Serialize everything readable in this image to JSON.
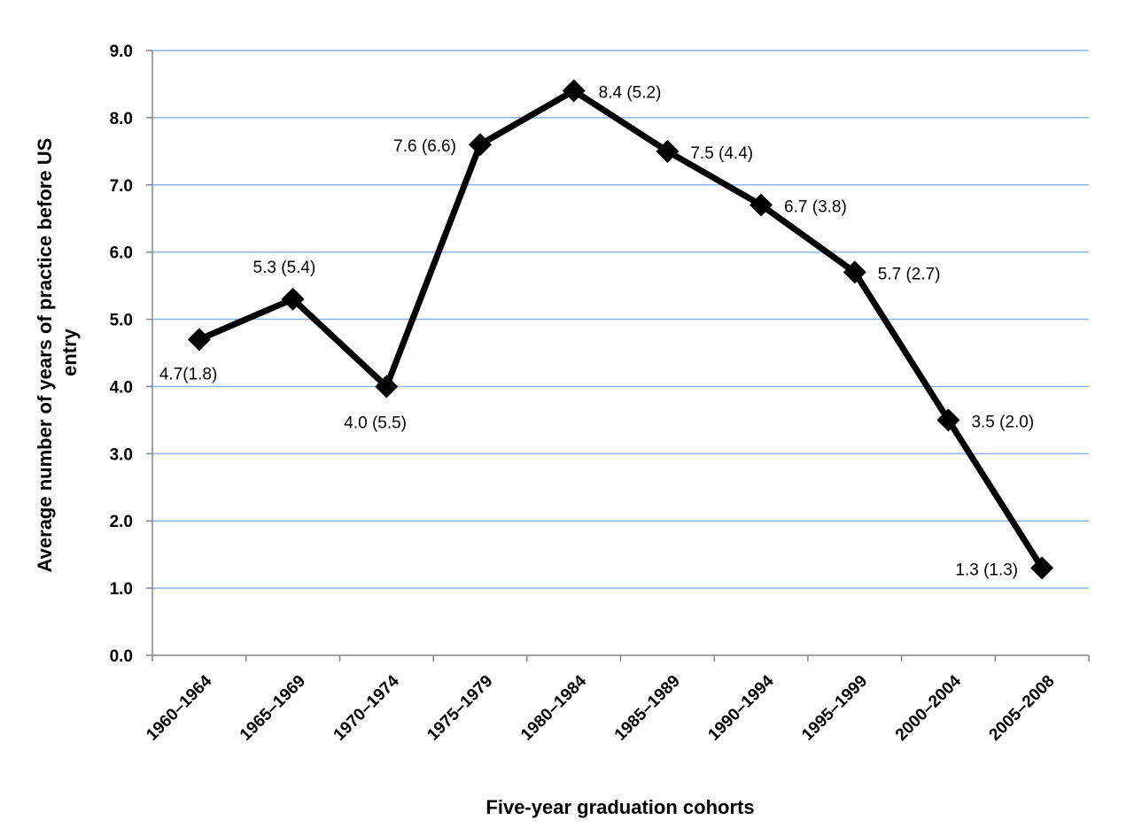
{
  "chart_data": {
    "type": "line",
    "categories": [
      "1960–1964",
      "1965–1969",
      "1970–1974",
      "1975–1979",
      "1980–1984",
      "1985–1989",
      "1990–1994",
      "1995–1999",
      "2000–2004",
      "2005–2008"
    ],
    "values": [
      4.7,
      5.3,
      4.0,
      7.6,
      8.4,
      7.5,
      6.7,
      5.7,
      3.5,
      1.3
    ],
    "data_labels": [
      "4.7(1.8)",
      "5.3 (5.4)",
      "4.0 (5.5)",
      "7.6 (6.6)",
      "8.4 (5.2)",
      "7.5 (4.4)",
      "6.7 (3.8)",
      "5.7 (2.7)",
      "3.5 (2.0)",
      "1.3 (1.3)"
    ],
    "ytick_labels": [
      "0.0",
      "1.0",
      "2.0",
      "3.0",
      "4.0",
      "5.0",
      "6.0",
      "7.0",
      "8.0",
      "9.0"
    ],
    "xlabel": "Five-year graduation cohorts",
    "ylabel_lines": [
      "Average number of years of practice before US",
      "entry"
    ],
    "ylim": [
      0,
      9
    ],
    "grid": "horizontal",
    "marker": "diamond",
    "line_color": "#000000",
    "grid_color": "#8db3e2",
    "axis_color": "#868686"
  }
}
